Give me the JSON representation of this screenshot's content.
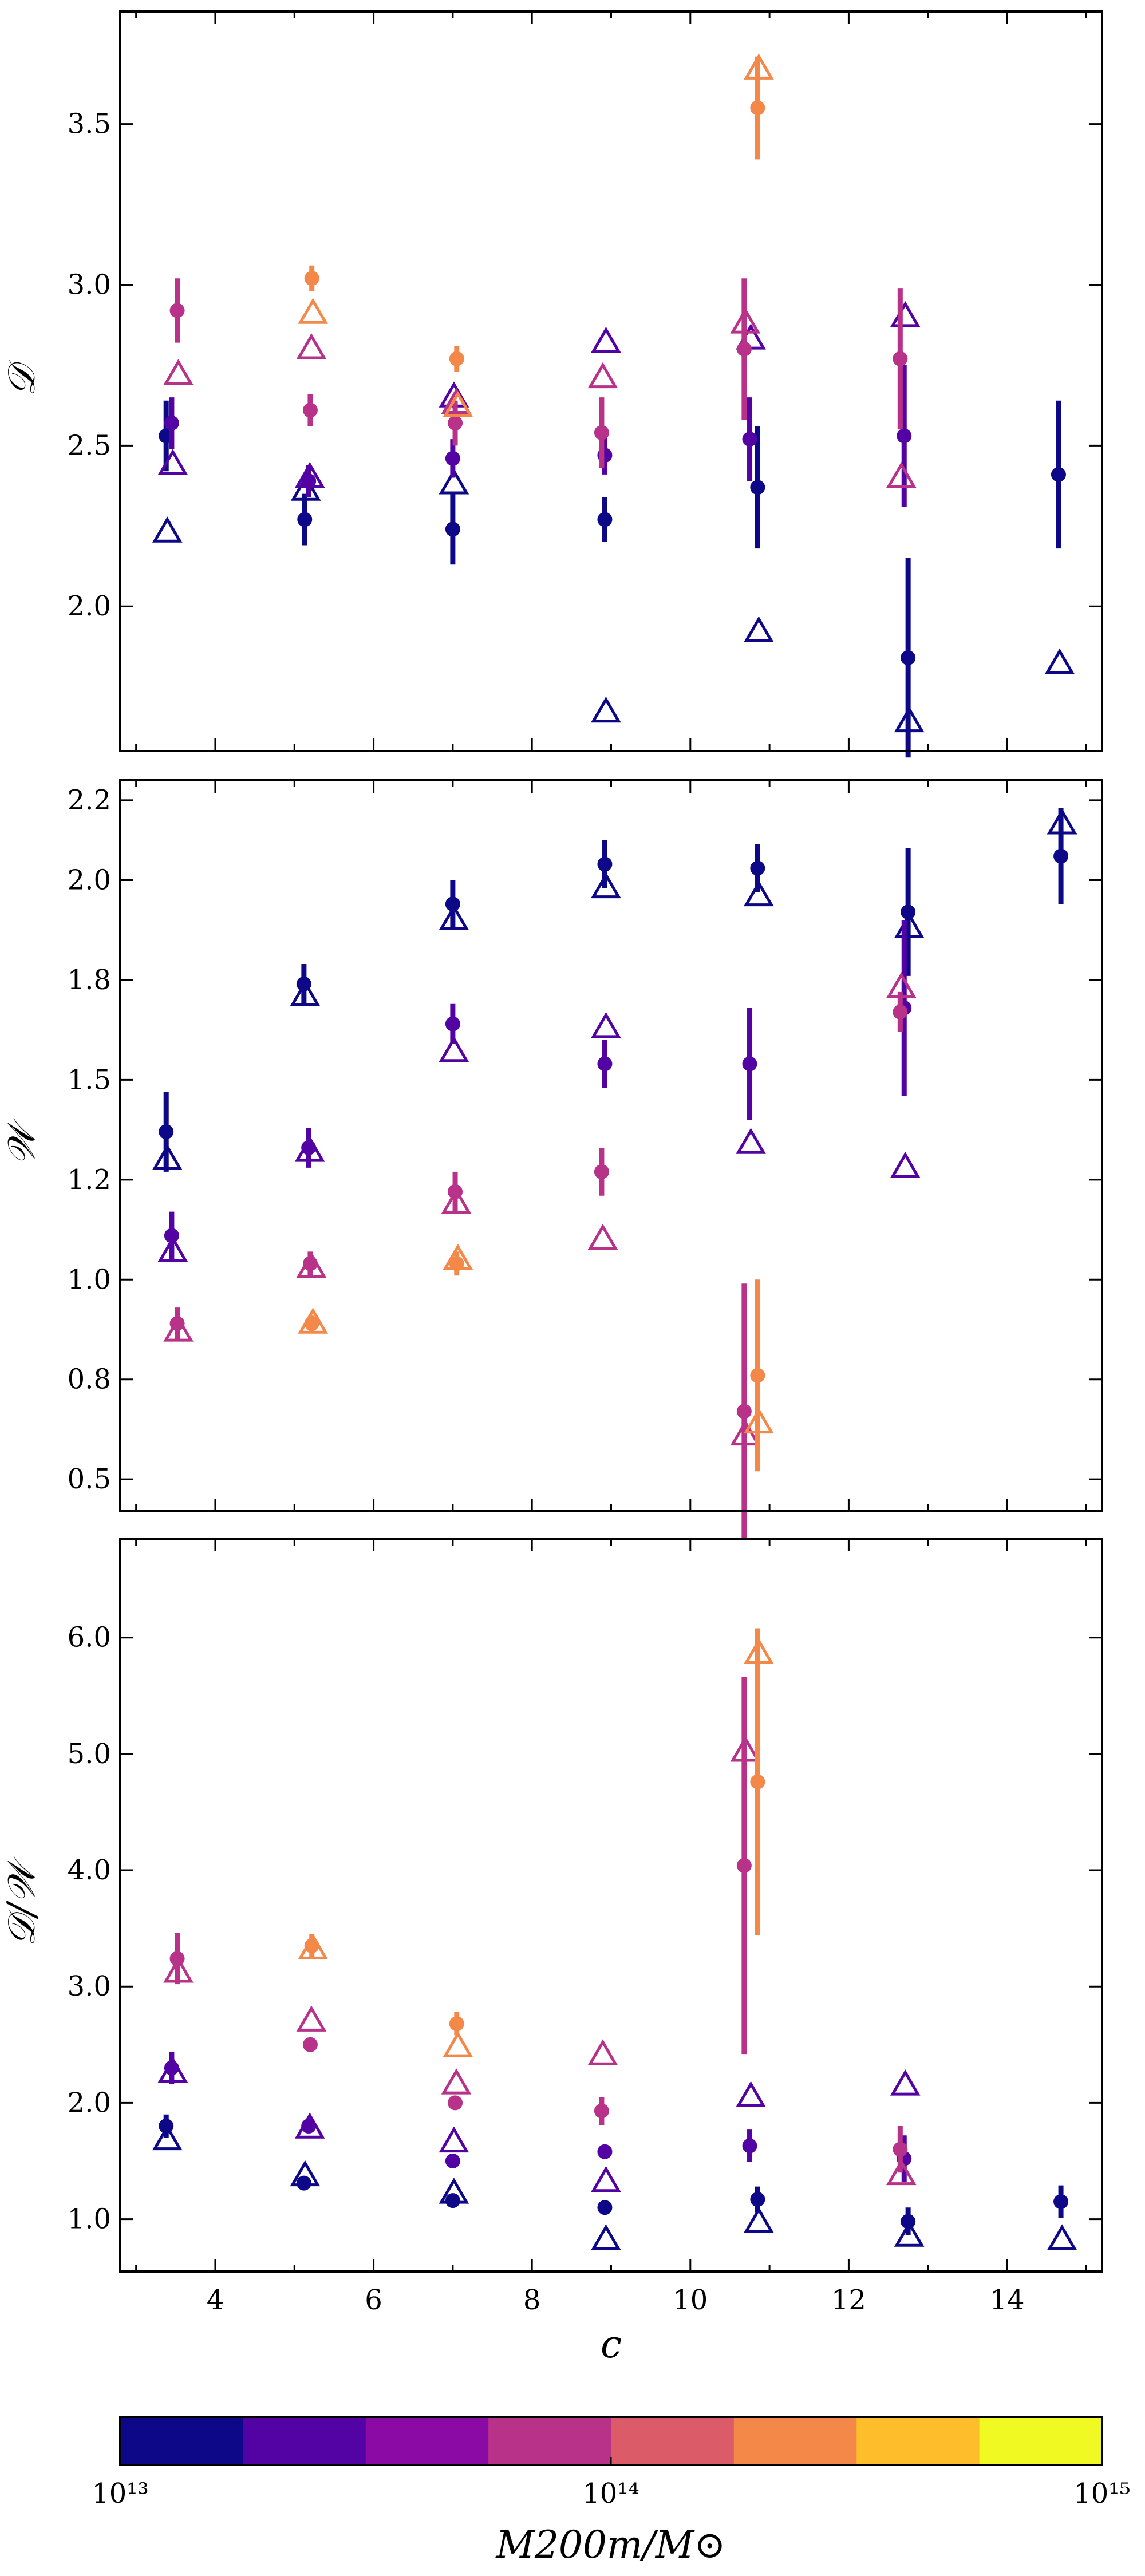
{
  "colors": {
    "m13.0": "#0d0887",
    "m13.25": "#5302a3",
    "m13.5": "#8b0aa5",
    "m13.75": "#b83289",
    "m14.0": "#db5c68",
    "m14.25": "#f48849",
    "m14.5": "#febd2a",
    "m14.75": "#f0f921"
  },
  "chart_data": [
    {
      "type": "scatter",
      "panel": "top",
      "ylabel": "𝒟",
      "xlabel": "",
      "xlim": [
        2.8,
        15.2
      ],
      "ylim": [
        1.55,
        3.85
      ],
      "xticks": [
        4,
        6,
        8,
        10,
        12,
        14
      ],
      "yticks": [
        2.0,
        2.5,
        3.0,
        3.5
      ],
      "ytick_labels": [
        "2.0",
        "2.5",
        "3.0",
        "3.5"
      ],
      "series": [
        {
          "color_key": "m13.0",
          "points": [
            {
              "x": 3.38,
              "y": 2.53,
              "err": 0.11,
              "tri": 2.23
            },
            {
              "x": 5.13,
              "y": 2.27,
              "err": 0.08,
              "tri": 2.36
            },
            {
              "x": 7.0,
              "y": 2.24,
              "err": 0.11,
              "tri": 2.38
            },
            {
              "x": 8.92,
              "y": 2.27,
              "err": 0.07,
              "tri": 1.67
            },
            {
              "x": 10.85,
              "y": 2.37,
              "err": 0.19,
              "tri": 1.92
            },
            {
              "x": 12.75,
              "y": 1.84,
              "err": 0.31,
              "tri": 1.64
            },
            {
              "x": 14.65,
              "y": 2.41,
              "err": 0.23,
              "tri": 1.82
            }
          ]
        },
        {
          "color_key": "m13.25",
          "points": [
            {
              "x": 3.45,
              "y": 2.57,
              "err": 0.08,
              "tri": 2.44
            },
            {
              "x": 5.18,
              "y": 2.39,
              "err": 0.05,
              "tri": 2.4
            },
            {
              "x": 7.0,
              "y": 2.46,
              "err": 0.06,
              "tri": 2.65
            },
            {
              "x": 8.92,
              "y": 2.47,
              "err": 0.06,
              "tri": 2.82
            },
            {
              "x": 10.75,
              "y": 2.52,
              "err": 0.13,
              "tri": 2.83
            },
            {
              "x": 12.7,
              "y": 2.53,
              "err": 0.22,
              "tri": 2.9
            }
          ]
        },
        {
          "color_key": "m13.75",
          "points": [
            {
              "x": 3.52,
              "y": 2.92,
              "err": 0.1,
              "tri": 2.72
            },
            {
              "x": 5.2,
              "y": 2.61,
              "err": 0.05,
              "tri": 2.8
            },
            {
              "x": 7.03,
              "y": 2.57,
              "err": 0.07,
              "tri": 2.63
            },
            {
              "x": 8.88,
              "y": 2.54,
              "err": 0.11,
              "tri": 2.71
            },
            {
              "x": 10.68,
              "y": 2.8,
              "err": 0.22,
              "tri": 2.88
            },
            {
              "x": 12.65,
              "y": 2.77,
              "err": 0.22,
              "tri": 2.4
            }
          ]
        },
        {
          "color_key": "m14.25",
          "points": [
            {
              "x": 5.22,
              "y": 3.02,
              "err": 0.04,
              "tri": 2.91
            },
            {
              "x": 7.05,
              "y": 2.77,
              "err": 0.04,
              "tri": 2.62
            },
            {
              "x": 10.85,
              "y": 3.55,
              "err": 0.16,
              "tri": 3.67
            }
          ]
        }
      ]
    },
    {
      "type": "scatter",
      "panel": "middle",
      "ylabel": "𝒲",
      "xlabel": "",
      "xlim": [
        2.8,
        15.2
      ],
      "ylim": [
        0.42,
        2.25
      ],
      "xticks": [
        4,
        6,
        8,
        10,
        12,
        14
      ],
      "yticks": [
        0.5,
        0.75,
        1.0,
        1.25,
        1.5,
        1.75,
        2.0,
        2.2
      ],
      "ytick_labels": [
        "0.5",
        "0.8",
        "1.0",
        "1.2",
        "1.5",
        "1.8",
        "2.0",
        "2.2"
      ],
      "series": [
        {
          "color_key": "m13.0",
          "points": [
            {
              "x": 3.38,
              "y": 1.37,
              "err": 0.1,
              "tri": 1.3
            },
            {
              "x": 5.12,
              "y": 1.74,
              "err": 0.05,
              "tri": 1.71
            },
            {
              "x": 7.0,
              "y": 1.94,
              "err": 0.06,
              "tri": 1.9
            },
            {
              "x": 8.92,
              "y": 2.04,
              "err": 0.06,
              "tri": 1.98
            },
            {
              "x": 10.85,
              "y": 2.03,
              "err": 0.06,
              "tri": 1.96
            },
            {
              "x": 12.75,
              "y": 1.92,
              "err": 0.16,
              "tri": 1.88
            },
            {
              "x": 14.68,
              "y": 2.06,
              "err": 0.12,
              "tri": 2.14
            }
          ]
        },
        {
          "color_key": "m13.25",
          "points": [
            {
              "x": 3.45,
              "y": 1.11,
              "err": 0.06,
              "tri": 1.07
            },
            {
              "x": 5.18,
              "y": 1.33,
              "err": 0.05,
              "tri": 1.32
            },
            {
              "x": 7.0,
              "y": 1.64,
              "err": 0.05,
              "tri": 1.57
            },
            {
              "x": 8.92,
              "y": 1.54,
              "err": 0.06,
              "tri": 1.63
            },
            {
              "x": 10.75,
              "y": 1.54,
              "err": 0.14,
              "tri": 1.34
            },
            {
              "x": 12.7,
              "y": 1.68,
              "err": 0.22,
              "tri": 1.28
            }
          ]
        },
        {
          "color_key": "m13.75",
          "points": [
            {
              "x": 3.52,
              "y": 0.89,
              "err": 0.04,
              "tri": 0.87
            },
            {
              "x": 5.2,
              "y": 1.04,
              "err": 0.03,
              "tri": 1.03
            },
            {
              "x": 7.03,
              "y": 1.22,
              "err": 0.05,
              "tri": 1.19
            },
            {
              "x": 8.88,
              "y": 1.27,
              "err": 0.06,
              "tri": 1.1
            },
            {
              "x": 10.68,
              "y": 0.67,
              "err": 0.32,
              "tri": 0.61
            },
            {
              "x": 12.65,
              "y": 1.67,
              "err": 0.05,
              "tri": 1.73
            }
          ]
        },
        {
          "color_key": "m14.25",
          "points": [
            {
              "x": 5.22,
              "y": 0.89,
              "err": 0.02,
              "tri": 0.89
            },
            {
              "x": 7.05,
              "y": 1.04,
              "err": 0.03,
              "tri": 1.05
            },
            {
              "x": 10.85,
              "y": 0.76,
              "err": 0.24,
              "tri": 0.64
            }
          ]
        }
      ]
    },
    {
      "type": "scatter",
      "panel": "bottom",
      "ylabel": "𝒟/𝒲",
      "xlabel": "c",
      "xlim": [
        2.8,
        15.2
      ],
      "ylim": [
        0.55,
        6.85
      ],
      "xticks": [
        4,
        6,
        8,
        10,
        12,
        14
      ],
      "yticks": [
        1.0,
        2.0,
        3.0,
        4.0,
        5.0,
        6.0
      ],
      "ytick_labels": [
        "1.0",
        "2.0",
        "3.0",
        "4.0",
        "5.0",
        "6.0"
      ],
      "series": [
        {
          "color_key": "m13.0",
          "points": [
            {
              "x": 3.38,
              "y": 1.8,
              "err": 0.1,
              "tri": 1.68
            },
            {
              "x": 5.12,
              "y": 1.31,
              "err": 0.04,
              "tri": 1.37
            },
            {
              "x": 7.0,
              "y": 1.16,
              "err": 0.05,
              "tri": 1.22
            },
            {
              "x": 8.92,
              "y": 1.1,
              "err": 0.04,
              "tri": 0.82
            },
            {
              "x": 10.85,
              "y": 1.17,
              "err": 0.11,
              "tri": 0.97
            },
            {
              "x": 12.75,
              "y": 0.98,
              "err": 0.12,
              "tri": 0.85
            },
            {
              "x": 14.68,
              "y": 1.15,
              "err": 0.14,
              "tri": 0.82
            }
          ]
        },
        {
          "color_key": "m13.25",
          "points": [
            {
              "x": 3.45,
              "y": 2.3,
              "err": 0.14,
              "tri": 2.26
            },
            {
              "x": 5.18,
              "y": 1.8,
              "err": 0.06,
              "tri": 1.78
            },
            {
              "x": 7.0,
              "y": 1.5,
              "err": 0.05,
              "tri": 1.66
            },
            {
              "x": 8.92,
              "y": 1.58,
              "err": 0.06,
              "tri": 1.32
            },
            {
              "x": 10.75,
              "y": 1.63,
              "err": 0.14,
              "tri": 2.05
            },
            {
              "x": 12.7,
              "y": 1.52,
              "err": 0.2,
              "tri": 2.15
            }
          ]
        },
        {
          "color_key": "m13.75",
          "points": [
            {
              "x": 3.52,
              "y": 3.24,
              "err": 0.22,
              "tri": 3.12
            },
            {
              "x": 5.2,
              "y": 2.5,
              "err": 0.06,
              "tri": 2.7
            },
            {
              "x": 7.03,
              "y": 2.0,
              "err": 0.06,
              "tri": 2.16
            },
            {
              "x": 8.88,
              "y": 1.93,
              "err": 0.12,
              "tri": 2.41
            },
            {
              "x": 10.68,
              "y": 4.04,
              "err": 1.62,
              "tri": 5.02
            },
            {
              "x": 12.65,
              "y": 1.6,
              "err": 0.2,
              "tri": 1.38
            }
          ]
        },
        {
          "color_key": "m14.25",
          "points": [
            {
              "x": 5.22,
              "y": 3.35,
              "err": 0.1,
              "tri": 3.32
            },
            {
              "x": 7.05,
              "y": 2.68,
              "err": 0.1,
              "tri": 2.48
            },
            {
              "x": 10.85,
              "y": 4.76,
              "err": 1.32,
              "tri": 5.86
            }
          ]
        }
      ]
    }
  ],
  "colorbar": {
    "label": "M200m/M⊙",
    "min_label": "10¹³",
    "mid_label": "10¹⁴",
    "max_label": "10¹⁵",
    "bins": 8
  }
}
